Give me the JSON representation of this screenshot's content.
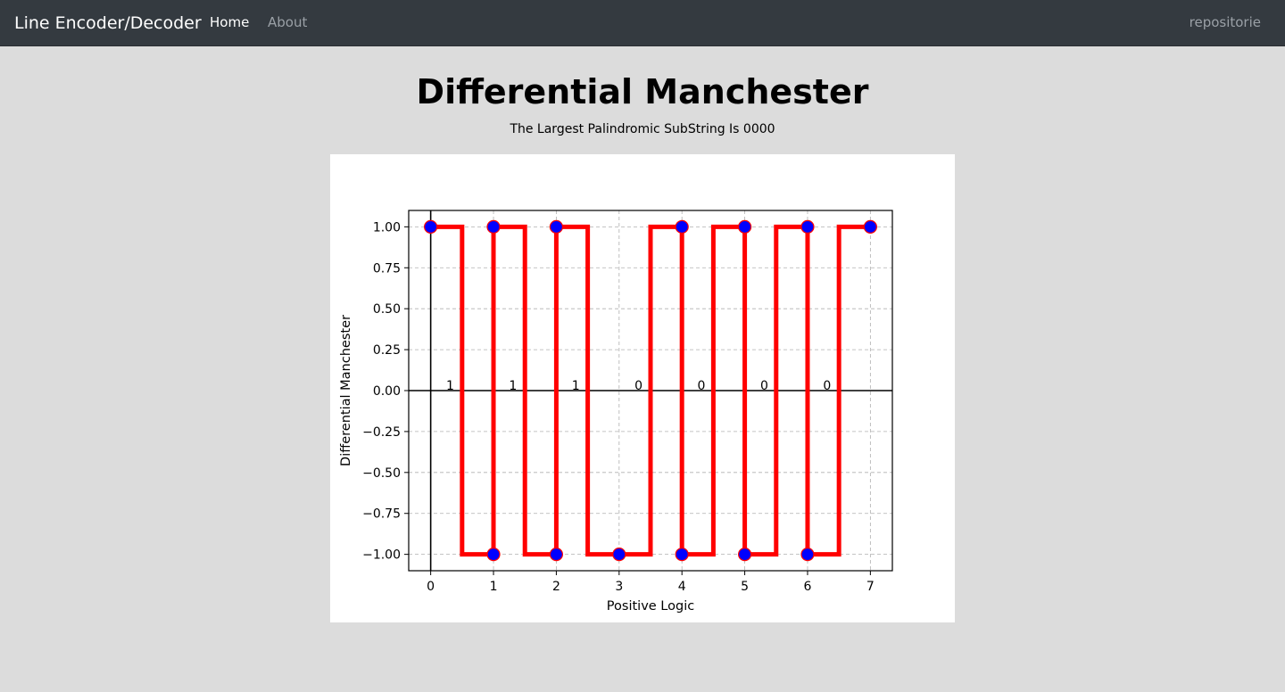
{
  "navbar": {
    "brand": "Line Encoder/Decoder",
    "links": [
      {
        "label": "Home"
      },
      {
        "label": "About"
      }
    ],
    "repo_link": "repositorie",
    "colors": {
      "background": "#343a40",
      "active": "#ffffff",
      "inactive": "#9aa0a6"
    }
  },
  "main": {
    "title": "Differential Manchester",
    "subtitle": "The Largest Palindromic SubString Is 0000"
  },
  "chart_data": {
    "type": "line",
    "title": "",
    "xlabel": "Positive Logic",
    "ylabel": "Differential Manchester",
    "xlim": [
      -0.35,
      7.35
    ],
    "ylim": [
      -1.1,
      1.1
    ],
    "xticks": [
      "0",
      "1",
      "2",
      "3",
      "4",
      "5",
      "6",
      "7"
    ],
    "yticks": [
      "1.00",
      "0.75",
      "0.50",
      "0.25",
      "0.00",
      "−0.25",
      "−0.50",
      "−0.75",
      "−1.00"
    ],
    "ytick_values": [
      1,
      0.75,
      0.5,
      0.25,
      0,
      -0.25,
      -0.5,
      -0.75,
      -1
    ],
    "grid": true,
    "grid_style": "dashed",
    "bits": [
      "1",
      "1",
      "1",
      "0",
      "0",
      "0",
      "0"
    ],
    "signal": {
      "x": [
        0,
        0.5,
        0.5,
        1,
        1,
        1.5,
        1.5,
        2,
        2,
        2.5,
        2.5,
        3,
        3,
        3.5,
        3.5,
        4,
        4,
        4.5,
        4.5,
        5,
        5,
        5.5,
        5.5,
        6,
        6,
        6.5,
        6.5,
        7
      ],
      "y": [
        1,
        1,
        -1,
        -1,
        1,
        1,
        -1,
        -1,
        1,
        1,
        -1,
        -1,
        -1,
        -1,
        1,
        1,
        -1,
        -1,
        1,
        1,
        -1,
        -1,
        1,
        1,
        -1,
        -1,
        1,
        1
      ],
      "color": "#ff0000"
    },
    "markers": {
      "x": [
        0,
        1,
        1,
        2,
        2,
        3,
        4,
        4,
        5,
        5,
        6,
        6,
        7
      ],
      "y": [
        1,
        1,
        -1,
        1,
        -1,
        -1,
        1,
        -1,
        1,
        -1,
        1,
        -1,
        1
      ],
      "face_color": "#0000ff",
      "edge_color": "#ff0000"
    }
  }
}
